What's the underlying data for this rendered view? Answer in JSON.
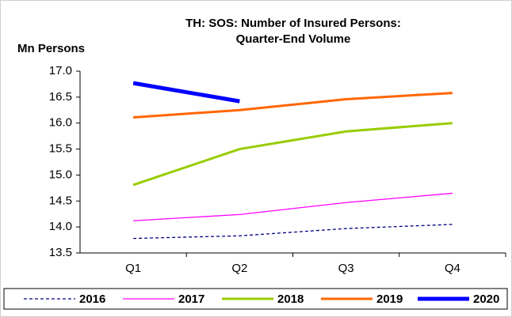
{
  "chart_data": {
    "type": "line",
    "title": [
      "TH: SOS: Number of Insured Persons:",
      "Quarter-End Volume"
    ],
    "y_label": "Mn Persons",
    "categories": [
      "Q1",
      "Q2",
      "Q3",
      "Q4"
    ],
    "ylim": [
      13.5,
      17.0
    ],
    "yticks": [
      {
        "value": 13.5,
        "label": "13.5"
      },
      {
        "value": 14,
        "label": "14.0"
      },
      14.5,
      {
        "value": 15,
        "label": "15.0"
      },
      15.5,
      {
        "value": 16,
        "label": "16.0"
      },
      16.5,
      {
        "value": 17,
        "label": "17.0"
      }
    ],
    "series": [
      {
        "name": "2016",
        "color": "#000080",
        "line_width": 1.3,
        "dashed": true,
        "values": [
          13.78,
          13.83,
          13.97,
          14.05
        ]
      },
      {
        "name": "2017",
        "color": "#ff00ff",
        "line_width": 1.3,
        "dashed": false,
        "values": [
          14.12,
          14.24,
          14.47,
          14.65
        ]
      },
      {
        "name": "2018",
        "color": "#99cc00",
        "line_width": 3,
        "dashed": false,
        "values": [
          14.81,
          15.5,
          15.84,
          16.0
        ]
      },
      {
        "name": "2019",
        "color": "#ff6600",
        "line_width": 3,
        "dashed": false,
        "values": [
          16.11,
          16.25,
          16.46,
          16.58
        ]
      },
      {
        "name": "2020",
        "color": "#0000ff",
        "line_width": 5,
        "dashed": false,
        "values": [
          16.77,
          16.42,
          null,
          null
        ]
      }
    ]
  }
}
